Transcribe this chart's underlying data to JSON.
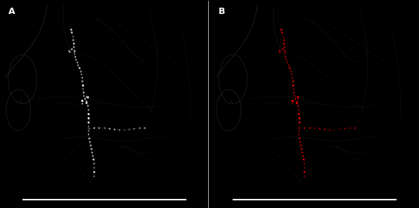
{
  "background_color": "#000000",
  "panel_A_label": "A",
  "panel_B_label": "B",
  "label_color": "#ffffff",
  "label_fontsize": 9,
  "scale_bar_color": "#ffffff",
  "fig_width": 5.98,
  "fig_height": 2.98
}
